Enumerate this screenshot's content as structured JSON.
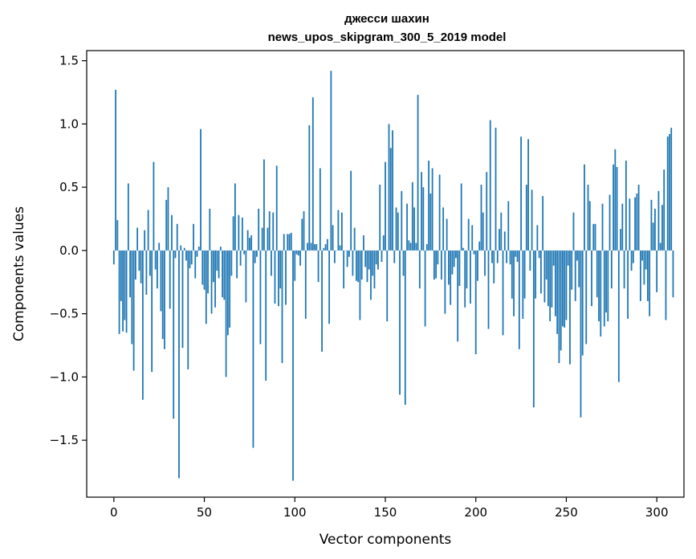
{
  "chart_data": {
    "type": "bar",
    "title_line1": "джесси шахин",
    "title_line2": "news_upos_skipgram_300_5_2019 model",
    "xlabel": "Vector components",
    "ylabel": "Components values",
    "xlim": [
      -15,
      315
    ],
    "ylim": [
      -1.95,
      1.58
    ],
    "x_ticks": [
      0,
      50,
      100,
      150,
      200,
      250,
      300
    ],
    "x_tick_labels": [
      "0",
      "50",
      "100",
      "150",
      "200",
      "250",
      "300"
    ],
    "y_ticks": [
      1.5,
      1.0,
      0.5,
      0.0,
      -0.5,
      -1.0,
      -1.5
    ],
    "y_tick_labels": [
      "1.5",
      "1.0",
      "0.5",
      "0.0",
      "−0.5",
      "−1.0",
      "−1.5"
    ],
    "bar_color": "#1f77b4",
    "grid": false,
    "legend": "none",
    "values": [
      -0.11,
      1.27,
      0.24,
      -0.66,
      -0.4,
      -0.64,
      -0.55,
      -0.65,
      0.53,
      -0.37,
      -0.74,
      -0.95,
      -0.23,
      0.18,
      -0.16,
      -0.26,
      -1.18,
      0.16,
      -0.35,
      0.32,
      -0.2,
      -0.96,
      0.7,
      -0.15,
      -0.3,
      0.06,
      -0.48,
      -0.7,
      -0.78,
      0.4,
      0.5,
      -0.46,
      0.28,
      -1.33,
      -0.06,
      0.21,
      -1.8,
      0.04,
      -0.77,
      0.02,
      -0.08,
      -0.94,
      -0.14,
      -0.11,
      0.21,
      -0.22,
      -0.05,
      0.03,
      0.96,
      -0.27,
      -0.31,
      -0.58,
      -0.34,
      0.33,
      -0.5,
      -0.25,
      -0.45,
      -0.16,
      -0.22,
      0.03,
      -0.37,
      -0.39,
      -1.0,
      -0.67,
      -0.61,
      -0.2,
      0.27,
      0.53,
      -0.22,
      0.28,
      -0.12,
      0.26,
      -0.03,
      -0.41,
      0.16,
      0.1,
      0.12,
      -1.56,
      -0.1,
      -0.05,
      0.33,
      -0.74,
      0.18,
      0.72,
      -1.03,
      0.18,
      0.31,
      -0.2,
      0.3,
      -0.42,
      0.67,
      -0.44,
      -0.3,
      -0.89,
      0.13,
      -0.43,
      0.13,
      0.13,
      0.14,
      -1.82,
      -0.24,
      -0.03,
      -0.04,
      -0.12,
      0.25,
      0.31,
      -0.54,
      0.06,
      0.99,
      0.06,
      1.21,
      0.05,
      0.05,
      -0.25,
      0.65,
      -0.8,
      0.02,
      0.05,
      0.09,
      -0.58,
      1.42,
      0.2,
      -0.1,
      0.0,
      0.32,
      0.04,
      0.3,
      -0.3,
      0.0,
      -0.13,
      -0.05,
      0.63,
      -0.2,
      0.18,
      -0.24,
      -0.25,
      -0.55,
      -0.23,
      0.12,
      -0.13,
      -0.25,
      -0.15,
      -0.39,
      -0.2,
      -0.3,
      -0.11,
      -0.15,
      0.52,
      -0.09,
      0.12,
      0.7,
      -0.56,
      1.0,
      0.81,
      0.95,
      -0.1,
      0.34,
      0.3,
      -1.14,
      0.47,
      -0.2,
      -1.22,
      0.37,
      0.08,
      0.06,
      0.54,
      0.34,
      0.06,
      1.23,
      -0.3,
      0.62,
      0.5,
      -0.6,
      0.05,
      0.71,
      0.45,
      0.65,
      -0.23,
      -0.22,
      -0.11,
      0.6,
      -0.23,
      0.34,
      -0.5,
      0.25,
      -0.27,
      -0.43,
      -0.19,
      -0.13,
      -0.06,
      -0.72,
      -0.28,
      0.53,
      0.02,
      -0.45,
      -0.3,
      0.25,
      -0.42,
      0.2,
      -0.03,
      -0.82,
      -0.24,
      0.07,
      0.52,
      0.3,
      -0.2,
      0.62,
      -0.62,
      1.03,
      -0.1,
      -0.26,
      0.97,
      -0.1,
      0.17,
      0.3,
      -0.67,
      0.15,
      -0.1,
      0.39,
      -0.11,
      -0.38,
      -0.52,
      -0.05,
      -0.09,
      -0.78,
      0.9,
      -0.54,
      -0.38,
      0.52,
      0.88,
      -0.16,
      0.48,
      -1.24,
      -0.38,
      0.2,
      -0.06,
      -0.34,
      0.43,
      -0.41,
      -0.23,
      -0.44,
      -0.56,
      -0.45,
      -0.12,
      -0.52,
      -0.66,
      -0.89,
      -0.79,
      -0.6,
      -0.61,
      -0.55,
      -0.12,
      -0.9,
      -0.31,
      0.3,
      -0.4,
      -0.08,
      -0.29,
      -1.32,
      -0.83,
      0.68,
      -0.74,
      0.52,
      0.39,
      -0.44,
      0.21,
      0.21,
      -0.37,
      -0.56,
      -0.68,
      0.37,
      -0.6,
      -0.49,
      -0.56,
      0.44,
      -0.3,
      0.68,
      0.8,
      0.66,
      -1.04,
      0.17,
      0.37,
      -0.3,
      0.71,
      -0.54,
      0.41,
      -0.16,
      -0.1,
      0.42,
      0.45,
      0.52,
      -0.4,
      -0.08,
      -0.27,
      -0.15,
      -0.4,
      -0.52,
      0.4,
      0.22,
      0.33,
      -0.33,
      0.47,
      0.06,
      0.36,
      0.64,
      -0.55,
      0.9,
      0.92,
      0.97,
      -0.37
    ]
  }
}
